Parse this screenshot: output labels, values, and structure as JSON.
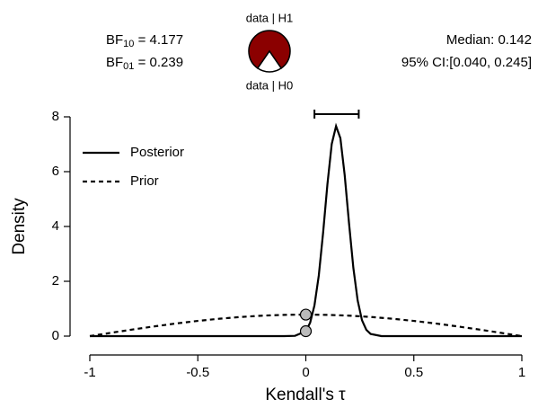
{
  "chart_data": {
    "type": "line",
    "xlabel": "Kendall's τ",
    "ylabel": "Density",
    "xlim": [
      -1,
      1
    ],
    "xticks": [
      -1,
      -0.5,
      0,
      0.5,
      1
    ],
    "ylim": [
      0,
      8
    ],
    "yticks": [
      0,
      2,
      4,
      6,
      8
    ],
    "series": [
      {
        "name": "Posterior",
        "color": "#000000",
        "dash": false,
        "x": [
          -1,
          -0.5,
          -0.1,
          -0.05,
          0,
          0.02,
          0.04,
          0.06,
          0.08,
          0.1,
          0.12,
          0.14,
          0.16,
          0.18,
          0.2,
          0.22,
          0.24,
          0.26,
          0.28,
          0.3,
          0.35,
          0.5,
          1
        ],
        "values": [
          0,
          0,
          0,
          0.01,
          0.18,
          0.49,
          1.12,
          2.21,
          3.77,
          5.54,
          7.01,
          7.66,
          7.22,
          5.87,
          4.12,
          2.49,
          1.3,
          0.58,
          0.23,
          0.08,
          0,
          0,
          0
        ]
      },
      {
        "name": "Prior",
        "color": "#000000",
        "dash": true,
        "x": [
          -1,
          -0.9,
          -0.8,
          -0.7,
          -0.6,
          -0.5,
          -0.4,
          -0.3,
          -0.2,
          -0.1,
          0,
          0.1,
          0.2,
          0.3,
          0.4,
          0.5,
          0.6,
          0.7,
          0.8,
          0.9,
          1
        ],
        "values": [
          0,
          0.123,
          0.243,
          0.356,
          0.462,
          0.555,
          0.635,
          0.699,
          0.747,
          0.775,
          0.785,
          0.775,
          0.747,
          0.699,
          0.635,
          0.555,
          0.462,
          0.356,
          0.243,
          0.123,
          0
        ]
      }
    ],
    "legend": "top-left",
    "ci_lower": 0.04,
    "ci_upper": 0.245,
    "ci_height": 8.1,
    "bf10": {
      "label": "BF",
      "sub": "10",
      "value": 4.177
    },
    "bf01": {
      "label": "BF",
      "sub": "01",
      "value": 0.239
    },
    "median_text": "Median: 0.142",
    "ci_text": "95% CI:[0.040, 0.245]",
    "pie": {
      "labels": [
        "data | H1",
        "data | H0"
      ],
      "values": [
        0.807,
        0.193
      ],
      "colors": [
        "#8b0000",
        "#ffffff"
      ]
    }
  }
}
